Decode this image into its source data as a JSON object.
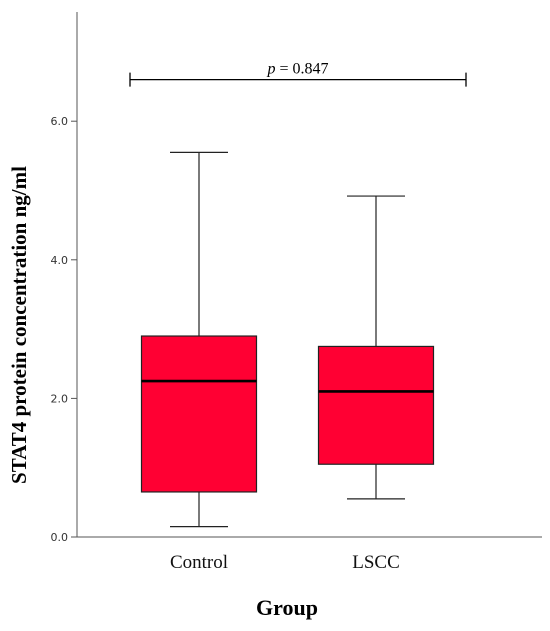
{
  "chart_data": {
    "type": "box",
    "ylabel": "STAT4 protein concentration ng/ml",
    "xlabel": "Group",
    "ylim": [
      0,
      7.5
    ],
    "yticks": [
      0,
      2,
      4,
      6
    ],
    "ytick_labels": [
      "0.0",
      "2.0",
      "4.0",
      "6.0"
    ],
    "categories": [
      "Control",
      "LSCC"
    ],
    "boxes": [
      {
        "name": "Control",
        "min": 0.15,
        "q1": 0.65,
        "median": 2.25,
        "q3": 2.9,
        "max": 5.55
      },
      {
        "name": "LSCC",
        "min": 0.55,
        "q1": 1.05,
        "median": 2.1,
        "q3": 2.75,
        "max": 4.92
      }
    ],
    "annotation": {
      "p_symbol": "p",
      "p_text": " = 0.847",
      "level": 6.6
    },
    "box_color": "#ff0033",
    "grid": false
  }
}
